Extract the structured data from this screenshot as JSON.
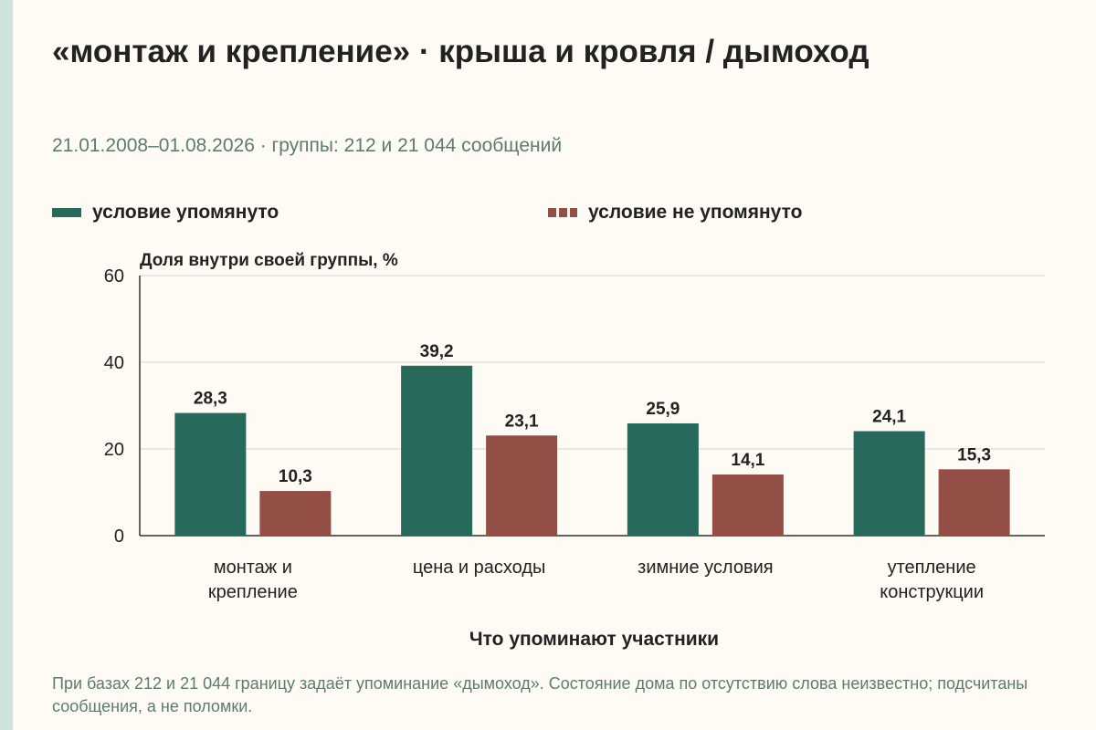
{
  "title": "«монтаж и крепление» · крыша и кровля / дымоход",
  "subtitle": "21.01.2008–01.08.2026 · группы: 212 и 21 044 сообщений",
  "footnote": "При базах 212 и 21 044 границу задаёт упоминание «дымоход». Состояние дома по отсутствию слова неизвестно; подсчитаны сообщения, а не поломки.",
  "colors": {
    "mentioned": "#27695a",
    "not_mentioned": "#934e45",
    "background": "#fdfbf3",
    "stripe": "#cfe3dd",
    "grid": "#d6d6d0",
    "axis": "#333333"
  },
  "chart_data": {
    "type": "bar",
    "title": "«монтаж и крепление» · крыша и кровля / дымоход",
    "subtitle": "21.01.2008–01.08.2026 · группы: 212 и 21 044 сообщений",
    "ylabel": "Доля внутри своей группы, %",
    "xlabel": "Что упоминают участники",
    "ylim": [
      0,
      60
    ],
    "yticks": [
      0,
      20,
      40,
      60
    ],
    "grid": true,
    "legend_position": "top",
    "categories": [
      [
        "монтаж и",
        "крепление"
      ],
      [
        "цена и расходы"
      ],
      [
        "зимние условия"
      ],
      [
        "утепление",
        "конструкции"
      ]
    ],
    "series": [
      {
        "name": "условие упомянуто",
        "color": "#27695a",
        "values": [
          28.3,
          39.2,
          25.9,
          24.1
        ],
        "labels": [
          "28,3",
          "39,2",
          "25,9",
          "24,1"
        ]
      },
      {
        "name": "условие не упомянуто",
        "color": "#934e45",
        "values": [
          10.3,
          23.1,
          14.1,
          15.3
        ],
        "labels": [
          "10,3",
          "23,1",
          "14,1",
          "15,3"
        ]
      }
    ]
  }
}
